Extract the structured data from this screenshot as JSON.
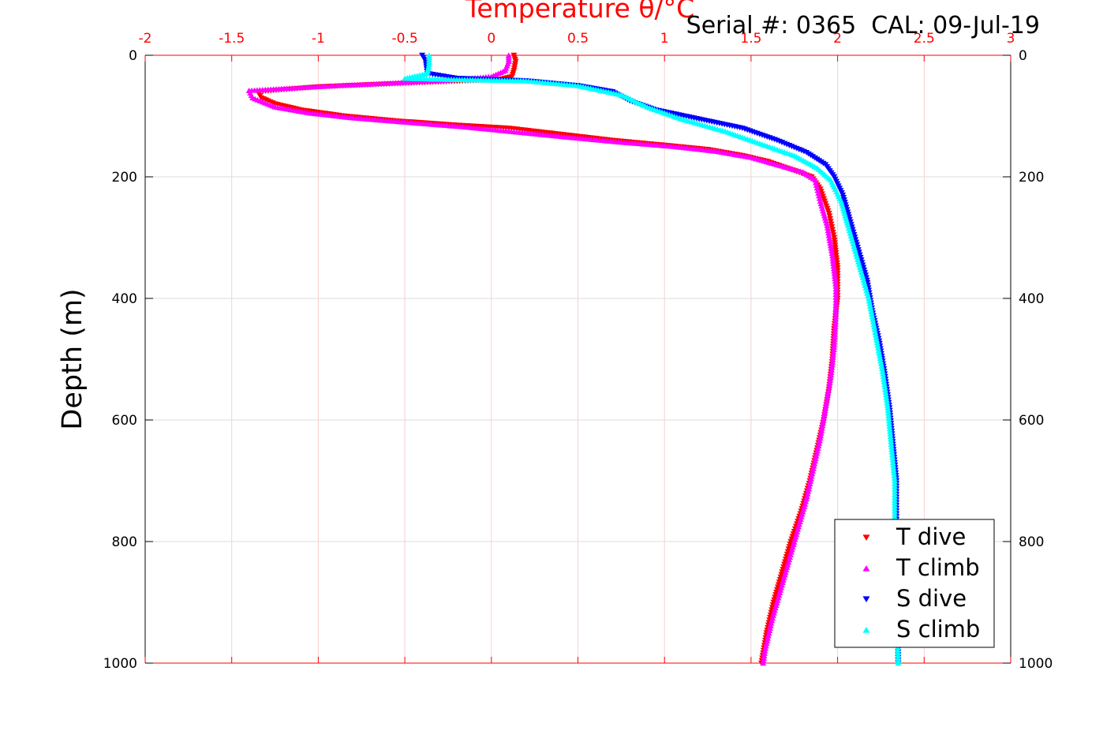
{
  "chart_data": {
    "type": "scatter",
    "title": "Temperature θ/°C",
    "annotation": "Serial #: 0365  CAL: 09-Jul-19",
    "xlabel": "Temperature θ/°C",
    "ylabel": "Depth (m)",
    "xlim": [
      -2,
      3
    ],
    "ylim": [
      0,
      1000
    ],
    "y_reversed": true,
    "grid": true,
    "x_ticks": [
      "-2",
      "-1.5",
      "-1",
      "-0.5",
      "0",
      "0.5",
      "1",
      "1.5",
      "2",
      "2.5",
      "3"
    ],
    "x_tick_values": [
      -2,
      -1.5,
      -1,
      -0.5,
      0,
      0.5,
      1,
      1.5,
      2,
      2.5,
      3
    ],
    "y_ticks": [
      "0",
      "200",
      "400",
      "600",
      "800",
      "1000"
    ],
    "y_tick_values": [
      0,
      200,
      400,
      600,
      800,
      1000
    ],
    "legend_position": "bottom-right",
    "series": [
      {
        "name": "T dive",
        "marker": "triangle-down",
        "color": "#ff0000",
        "points": [
          [
            0.13,
            0
          ],
          [
            0.14,
            10
          ],
          [
            0.13,
            25
          ],
          [
            0.12,
            35
          ],
          [
            0.05,
            40
          ],
          [
            -0.4,
            45
          ],
          [
            -1.0,
            52
          ],
          [
            -1.35,
            60
          ],
          [
            -1.33,
            70
          ],
          [
            -1.25,
            80
          ],
          [
            -1.1,
            90
          ],
          [
            -0.85,
            100
          ],
          [
            -0.55,
            108
          ],
          [
            -0.2,
            115
          ],
          [
            0.1,
            120
          ],
          [
            0.4,
            130
          ],
          [
            0.7,
            140
          ],
          [
            1.0,
            148
          ],
          [
            1.25,
            155
          ],
          [
            1.45,
            165
          ],
          [
            1.6,
            175
          ],
          [
            1.75,
            190
          ],
          [
            1.85,
            200
          ],
          [
            1.9,
            220
          ],
          [
            1.95,
            260
          ],
          [
            1.98,
            300
          ],
          [
            2.0,
            350
          ],
          [
            2.0,
            400
          ],
          [
            1.98,
            450
          ],
          [
            1.97,
            500
          ],
          [
            1.95,
            550
          ],
          [
            1.92,
            600
          ],
          [
            1.88,
            650
          ],
          [
            1.84,
            700
          ],
          [
            1.79,
            750
          ],
          [
            1.73,
            800
          ],
          [
            1.68,
            850
          ],
          [
            1.63,
            900
          ],
          [
            1.59,
            950
          ],
          [
            1.56,
            1000
          ]
        ]
      },
      {
        "name": "T climb",
        "marker": "triangle-up",
        "color": "#ff00ff",
        "points": [
          [
            0.1,
            0
          ],
          [
            0.1,
            10
          ],
          [
            0.08,
            25
          ],
          [
            0.0,
            35
          ],
          [
            -0.3,
            42
          ],
          [
            -0.9,
            50
          ],
          [
            -1.4,
            58
          ],
          [
            -1.38,
            70
          ],
          [
            -1.25,
            85
          ],
          [
            -1.05,
            95
          ],
          [
            -0.8,
            103
          ],
          [
            -0.5,
            110
          ],
          [
            -0.15,
            118
          ],
          [
            0.1,
            125
          ],
          [
            0.45,
            135
          ],
          [
            0.75,
            143
          ],
          [
            1.05,
            150
          ],
          [
            1.3,
            158
          ],
          [
            1.5,
            168
          ],
          [
            1.65,
            180
          ],
          [
            1.8,
            192
          ],
          [
            1.87,
            205
          ],
          [
            1.9,
            240
          ],
          [
            1.94,
            280
          ],
          [
            1.97,
            330
          ],
          [
            1.99,
            380
          ],
          [
            1.99,
            430
          ],
          [
            1.98,
            480
          ],
          [
            1.96,
            530
          ],
          [
            1.93,
            580
          ],
          [
            1.9,
            630
          ],
          [
            1.86,
            680
          ],
          [
            1.82,
            730
          ],
          [
            1.77,
            780
          ],
          [
            1.72,
            830
          ],
          [
            1.67,
            880
          ],
          [
            1.62,
            930
          ],
          [
            1.58,
            980
          ],
          [
            1.57,
            1000
          ]
        ]
      },
      {
        "name": "S dive",
        "marker": "triangle-down",
        "color": "#0000ff",
        "points": [
          [
            -0.4,
            0
          ],
          [
            -0.38,
            10
          ],
          [
            -0.37,
            30
          ],
          [
            -0.2,
            38
          ],
          [
            0.2,
            42
          ],
          [
            0.5,
            50
          ],
          [
            0.7,
            60
          ],
          [
            0.8,
            75
          ],
          [
            0.95,
            90
          ],
          [
            1.2,
            105
          ],
          [
            1.45,
            120
          ],
          [
            1.65,
            140
          ],
          [
            1.82,
            160
          ],
          [
            1.93,
            180
          ],
          [
            1.98,
            200
          ],
          [
            2.03,
            230
          ],
          [
            2.07,
            270
          ],
          [
            2.12,
            320
          ],
          [
            2.17,
            370
          ],
          [
            2.2,
            420
          ],
          [
            2.24,
            470
          ],
          [
            2.27,
            520
          ],
          [
            2.3,
            580
          ],
          [
            2.32,
            640
          ],
          [
            2.34,
            700
          ],
          [
            2.34,
            800
          ],
          [
            2.35,
            900
          ],
          [
            2.35,
            1000
          ]
        ]
      },
      {
        "name": "S climb",
        "marker": "triangle-up",
        "color": "#00ffff",
        "points": [
          [
            -0.36,
            0
          ],
          [
            -0.36,
            15
          ],
          [
            -0.37,
            30
          ],
          [
            -0.5,
            38
          ],
          [
            -0.2,
            40
          ],
          [
            0.2,
            42
          ],
          [
            0.5,
            50
          ],
          [
            0.75,
            65
          ],
          [
            0.9,
            85
          ],
          [
            1.1,
            105
          ],
          [
            1.35,
            125
          ],
          [
            1.55,
            145
          ],
          [
            1.75,
            165
          ],
          [
            1.88,
            185
          ],
          [
            1.96,
            205
          ],
          [
            2.02,
            240
          ],
          [
            2.06,
            280
          ],
          [
            2.12,
            340
          ],
          [
            2.18,
            400
          ],
          [
            2.22,
            460
          ],
          [
            2.26,
            520
          ],
          [
            2.29,
            580
          ],
          [
            2.31,
            640
          ],
          [
            2.33,
            700
          ],
          [
            2.33,
            800
          ],
          [
            2.34,
            900
          ],
          [
            2.35,
            1000
          ]
        ]
      }
    ]
  }
}
